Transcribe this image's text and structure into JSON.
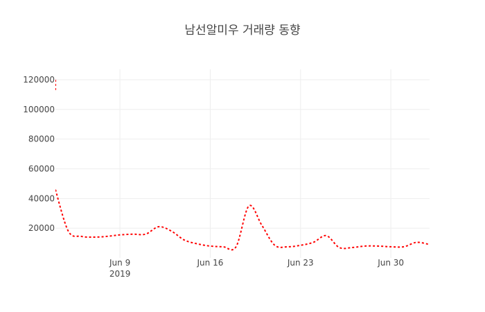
{
  "chart_data": {
    "type": "line",
    "title": "남선알미우 거래량 동향",
    "xlabel": "",
    "ylabel": "",
    "x_ticks": [
      {
        "date": "2019-06-09",
        "label": "Jun 9",
        "sublabel": "2019"
      },
      {
        "date": "2019-06-16",
        "label": "Jun 16",
        "sublabel": ""
      },
      {
        "date": "2019-06-23",
        "label": "Jun 23",
        "sublabel": ""
      },
      {
        "date": "2019-06-30",
        "label": "Jun 30",
        "sublabel": ""
      }
    ],
    "y_ticks": [
      20000,
      40000,
      60000,
      80000,
      100000,
      120000
    ],
    "xlim": [
      "2019-06-04",
      "2019-07-03"
    ],
    "ylim": [
      0,
      127000
    ],
    "grid": true,
    "legend": "none",
    "series": [
      {
        "color": "#ff0000",
        "dash": "dot",
        "x": [
          "2019-06-04",
          "2019-06-05",
          "2019-06-06",
          "2019-06-07",
          "2019-06-08",
          "2019-06-09",
          "2019-06-10",
          "2019-06-11",
          "2019-06-12",
          "2019-06-13",
          "2019-06-14",
          "2019-06-15",
          "2019-06-16",
          "2019-06-17",
          "2019-06-18",
          "2019-06-19",
          "2019-06-20",
          "2019-06-21",
          "2019-06-22",
          "2019-06-23",
          "2019-06-24",
          "2019-06-25",
          "2019-06-26",
          "2019-06-27",
          "2019-06-28",
          "2019-06-29",
          "2019-06-30",
          "2019-07-01",
          "2019-07-02",
          "2019-07-03"
        ],
        "y": [
          46000,
          18000,
          14500,
          14000,
          14500,
          15500,
          16000,
          16000,
          21000,
          18000,
          12000,
          9500,
          8000,
          7500,
          7500,
          35000,
          22000,
          8500,
          7500,
          8500,
          10500,
          15000,
          7000,
          7000,
          8000,
          8000,
          7500,
          7500,
          10500,
          9000
        ]
      },
      {
        "color": "#ff0000",
        "dash": "dot",
        "x": [
          "2019-06-04",
          "2019-06-04"
        ],
        "y": [
          113000,
          120000
        ]
      }
    ]
  }
}
